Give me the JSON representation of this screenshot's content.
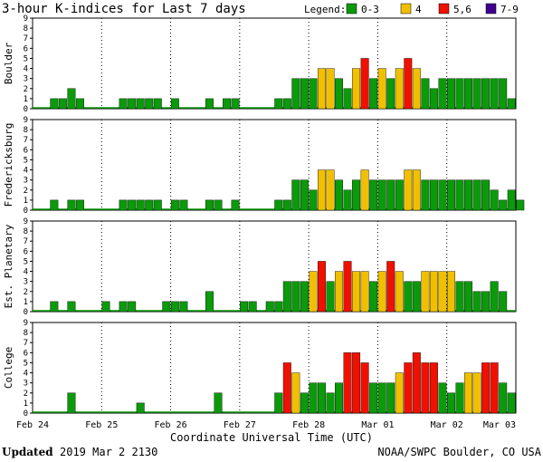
{
  "title": "3-hour K-indices for Last 7 days",
  "legend": {
    "label": "Legend:",
    "items": [
      {
        "label": "0-3",
        "color": "#0a9a0a"
      },
      {
        "label": "4",
        "color": "#f0c000"
      },
      {
        "label": "5,6",
        "color": "#f01000"
      },
      {
        "label": "7-9",
        "color": "#400090"
      }
    ]
  },
  "xlabel": "Coordinate Universal Time (UTC)",
  "footer": {
    "updated_label": "Updated",
    "updated_value": "2019 Mar  2 2130",
    "credit": "NOAA/SWPC Boulder, CO USA"
  },
  "chart_data": {
    "type": "bar",
    "x_ticks": [
      "Feb 24",
      "Feb 25",
      "Feb 26",
      "Feb 27",
      "Feb 28",
      "Mar 01",
      "Mar 02",
      "Mar 03"
    ],
    "ylim": [
      0,
      9
    ],
    "y_ticks": [
      "0",
      "1",
      "2",
      "3",
      "4",
      "5",
      "6",
      "7",
      "8",
      "9"
    ],
    "interval_hours": 3,
    "series": [
      {
        "name": "Boulder",
        "values": [
          0,
          0,
          1,
          1,
          2,
          1,
          0,
          0,
          0,
          0,
          1,
          1,
          1,
          1,
          1,
          0,
          1,
          0,
          0,
          0,
          1,
          0,
          1,
          1,
          0,
          0,
          0,
          0,
          1,
          1,
          3,
          3,
          3,
          4,
          4,
          3,
          2,
          4,
          5,
          3,
          4,
          3,
          4,
          5,
          4,
          3,
          2,
          3,
          3,
          3,
          3,
          3,
          3,
          3,
          3,
          1,
          0
        ]
      },
      {
        "name": "Fredericksburg",
        "values": [
          0,
          0,
          1,
          0,
          1,
          1,
          0,
          0,
          0,
          0,
          1,
          1,
          1,
          1,
          1,
          0,
          1,
          1,
          0,
          0,
          1,
          1,
          0,
          1,
          0,
          0,
          0,
          0,
          1,
          1,
          3,
          3,
          2,
          4,
          4,
          3,
          2,
          3,
          4,
          3,
          3,
          3,
          3,
          4,
          4,
          3,
          3,
          3,
          3,
          3,
          3,
          3,
          3,
          2,
          1,
          2,
          1
        ]
      },
      {
        "name": "Est. Planetary",
        "values": [
          0,
          0,
          1,
          0,
          1,
          0,
          0,
          0,
          1,
          0,
          1,
          1,
          0,
          0,
          0,
          1,
          1,
          1,
          0,
          0,
          2,
          0,
          0,
          0,
          1,
          1,
          0,
          1,
          1,
          3,
          3,
          3,
          4,
          5,
          3,
          4,
          5,
          4,
          4,
          3,
          4,
          5,
          4,
          3,
          3,
          4,
          4,
          4,
          4,
          3,
          3,
          2,
          2,
          3,
          2
        ]
      },
      {
        "name": "College",
        "values": [
          0,
          0,
          0,
          0,
          2,
          0,
          0,
          0,
          0,
          0,
          0,
          0,
          1,
          0,
          0,
          0,
          0,
          0,
          0,
          0,
          0,
          2,
          0,
          0,
          0,
          0,
          0,
          0,
          2,
          5,
          4,
          2,
          3,
          3,
          2,
          3,
          6,
          6,
          5,
          3,
          3,
          3,
          4,
          5,
          6,
          5,
          5,
          3,
          2,
          3,
          4,
          4,
          5,
          5,
          3,
          2,
          0
        ]
      }
    ]
  }
}
